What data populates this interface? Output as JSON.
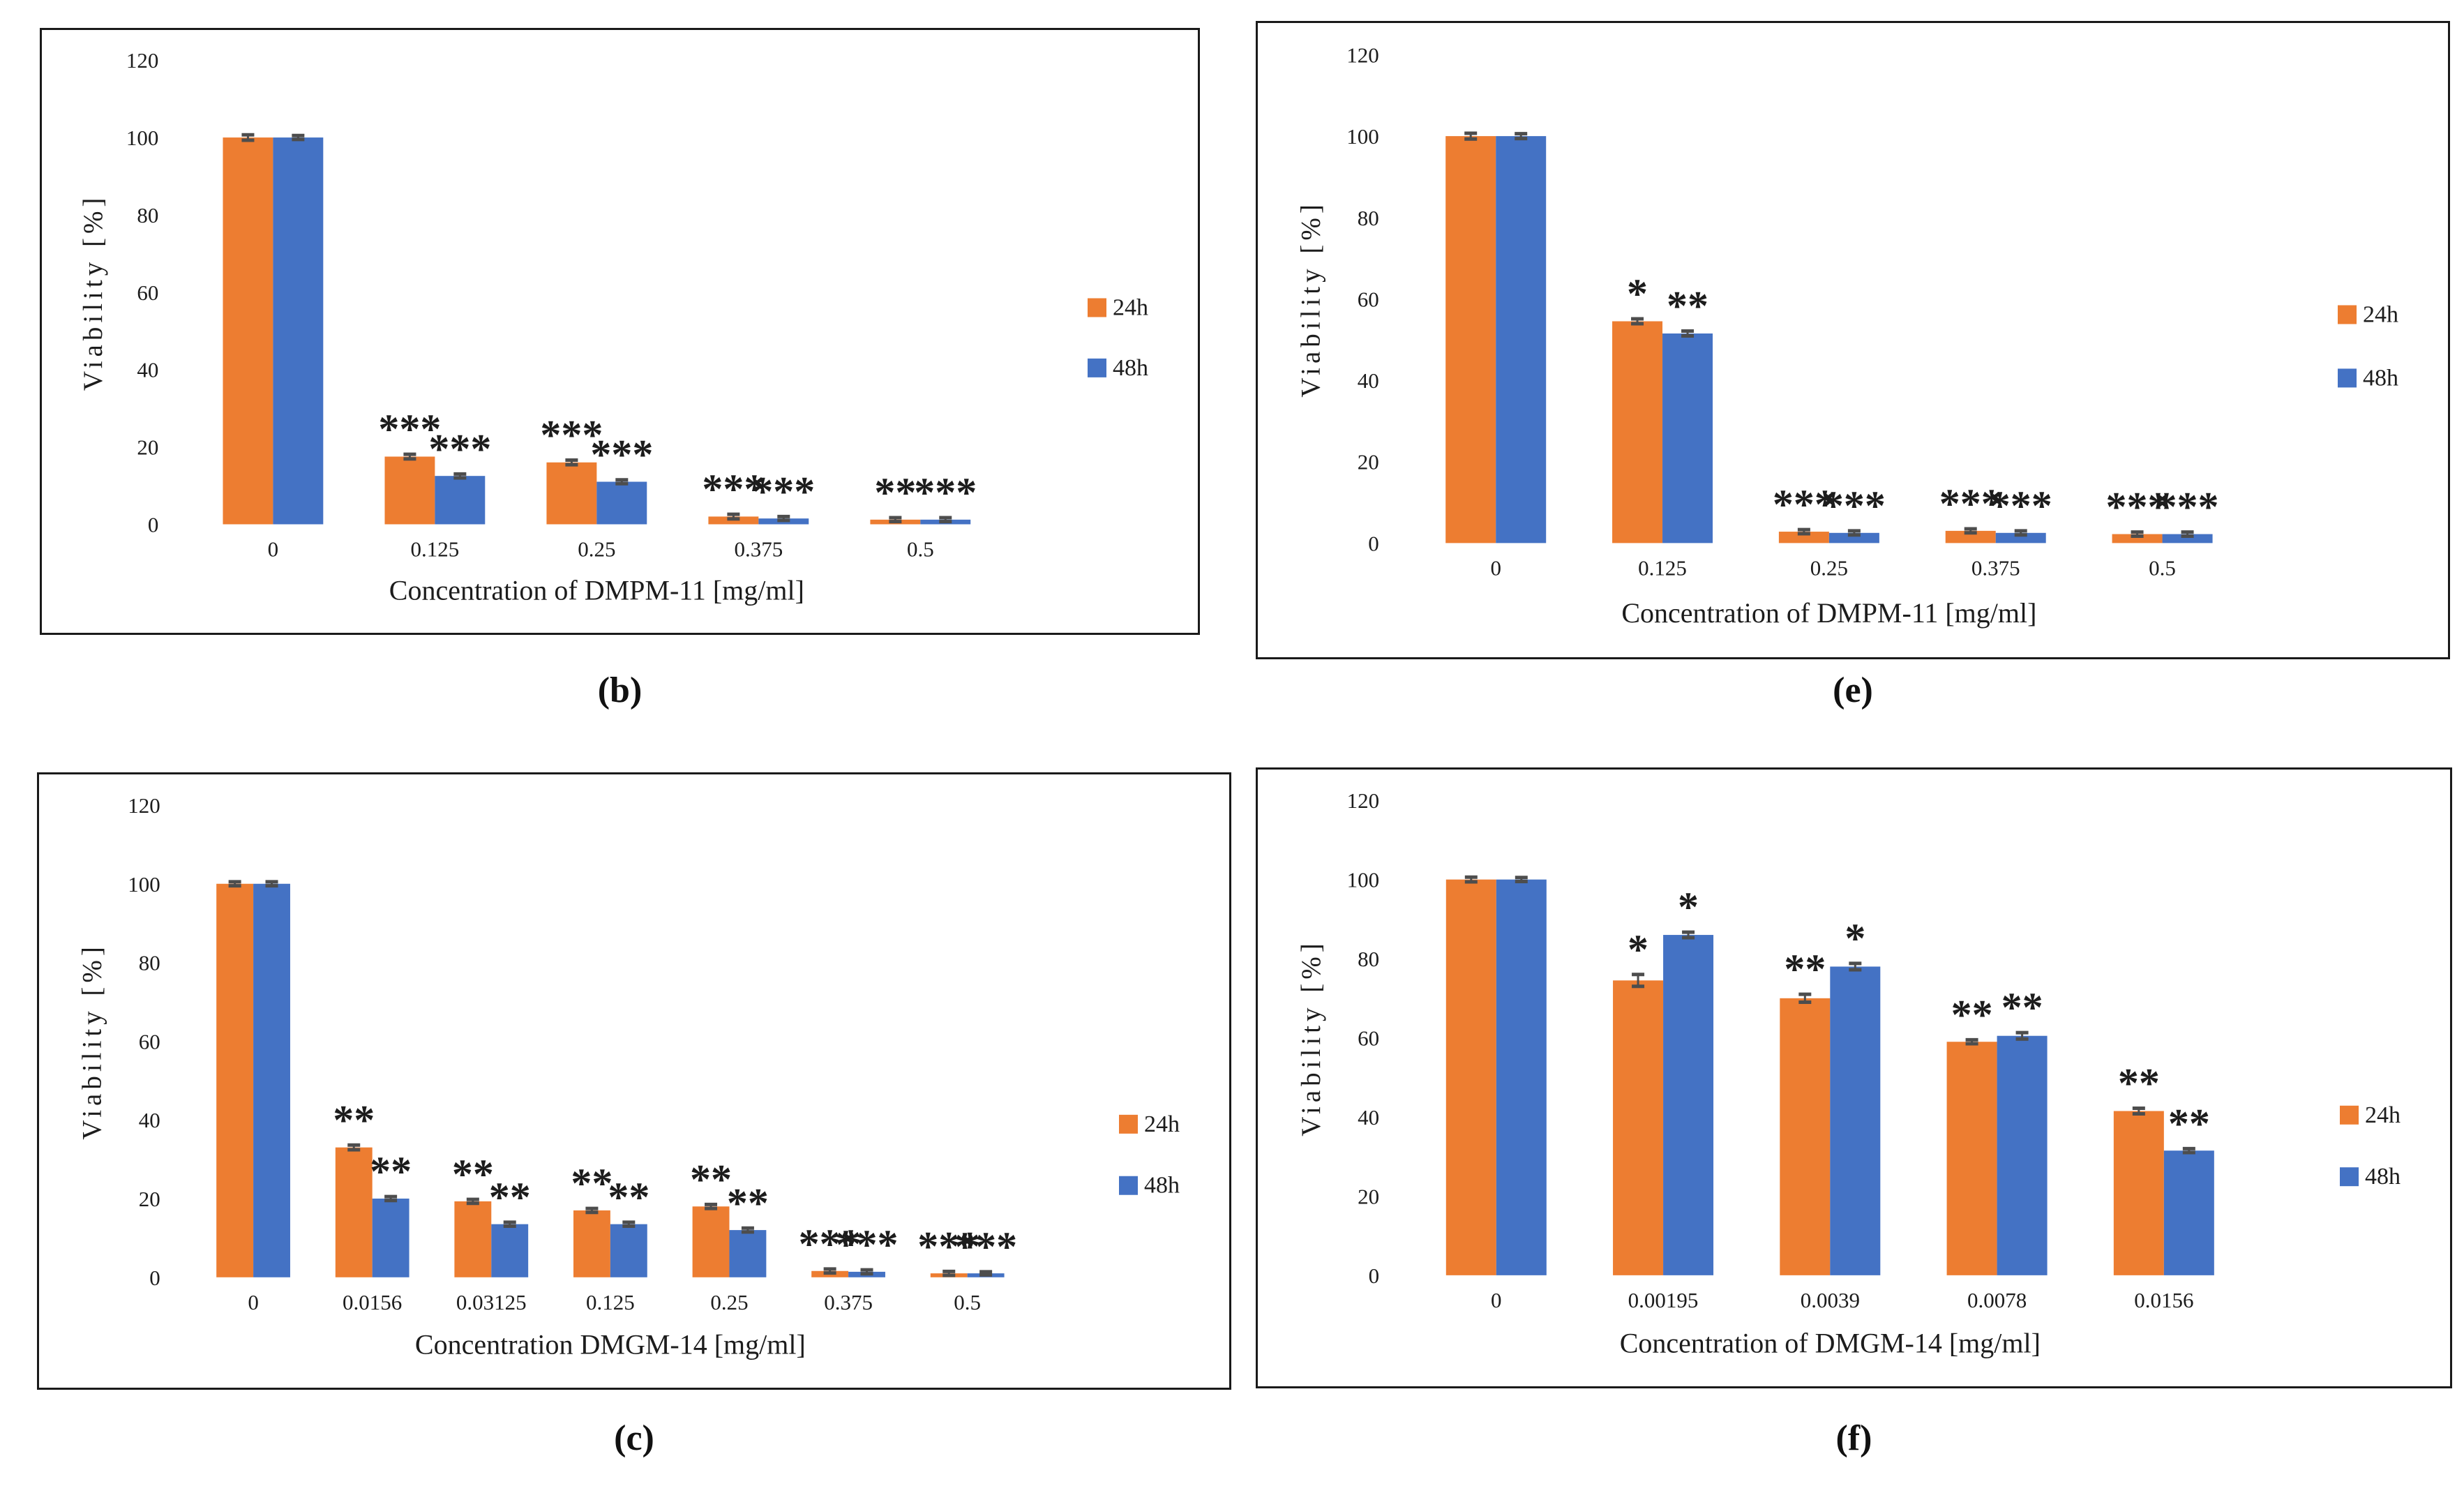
{
  "colors": {
    "series_24h": "#ED7D31",
    "series_48h": "#4472C4",
    "error_bar": "#4d4d4d",
    "panel_border": "#1a1a1a",
    "text": "#1c1c1c"
  },
  "legend": {
    "items": [
      {
        "label": "24h",
        "color_key": "series_24h"
      },
      {
        "label": "48h",
        "color_key": "series_48h"
      }
    ]
  },
  "axes": {
    "ylabel": "Viability [%]",
    "yticks": [
      0,
      20,
      40,
      60,
      80,
      100,
      120
    ],
    "ylim": [
      0,
      120
    ],
    "grid": false,
    "legend_position": "right"
  },
  "chart_data": [
    {
      "id": "b",
      "type": "bar",
      "caption": "(b)",
      "xlabel": "Concentration of DMPM-11 [mg/ml]",
      "ylabel": "Viability [%]",
      "ylim": [
        0,
        120
      ],
      "categories": [
        "0",
        "0.125",
        "0.25",
        "0.375",
        "0.5"
      ],
      "series": [
        {
          "name": "24h",
          "values": [
            100,
            17.5,
            16,
            2,
            1.2
          ],
          "errors": [
            0.7,
            0.6,
            0.6,
            0.6,
            0.5
          ],
          "sig": [
            "",
            "***",
            "***",
            "***",
            "**"
          ]
        },
        {
          "name": "48h",
          "values": [
            100,
            12.5,
            11,
            1.5,
            1.2
          ],
          "errors": [
            0.5,
            0.5,
            0.5,
            0.5,
            0.5
          ],
          "sig": [
            "",
            "***",
            "***",
            "***",
            "***"
          ]
        }
      ]
    },
    {
      "id": "e",
      "type": "bar",
      "caption": "(e)",
      "xlabel": "Concentration of DMPM-11 [mg/ml]",
      "ylabel": "Viability [%]",
      "ylim": [
        0,
        120
      ],
      "categories": [
        "0",
        "0.125",
        "0.25",
        "0.375",
        "0.5"
      ],
      "series": [
        {
          "name": "24h",
          "values": [
            100,
            54.5,
            2.8,
            3,
            2.2
          ],
          "errors": [
            0.7,
            0.6,
            0.5,
            0.5,
            0.5
          ],
          "sig": [
            "",
            "*",
            "***",
            "***",
            "***"
          ]
        },
        {
          "name": "48h",
          "values": [
            100,
            51.5,
            2.5,
            2.5,
            2.2
          ],
          "errors": [
            0.6,
            0.6,
            0.5,
            0.5,
            0.5
          ],
          "sig": [
            "",
            "**",
            "***",
            "***",
            "***"
          ]
        }
      ]
    },
    {
      "id": "c",
      "type": "bar",
      "caption": "(c)",
      "xlabel": "Concentration DMGM-14 [mg/ml]",
      "ylabel": "Viability [%]",
      "ylim": [
        0,
        120
      ],
      "categories": [
        "0",
        "0.0156",
        "0.03125",
        "0.125",
        "0.25",
        "0.375",
        "0.5"
      ],
      "series": [
        {
          "name": "24h",
          "values": [
            100,
            33,
            19.3,
            17,
            18,
            1.6,
            1
          ],
          "errors": [
            0.5,
            0.6,
            0.5,
            0.5,
            0.5,
            0.5,
            0.5
          ],
          "sig": [
            "",
            "**",
            "**",
            "**",
            "**",
            "***",
            "***"
          ]
        },
        {
          "name": "48h",
          "values": [
            100,
            20,
            13.5,
            13.5,
            12,
            1.4,
            1
          ],
          "errors": [
            0.5,
            0.5,
            0.5,
            0.5,
            0.5,
            0.5,
            0.4
          ],
          "sig": [
            "",
            "**",
            "**",
            "**",
            "**",
            "***",
            "***"
          ]
        }
      ]
    },
    {
      "id": "f",
      "type": "bar",
      "caption": "(f)",
      "xlabel": "Concentration of DMGM-14 [mg/ml]",
      "ylabel": "Viability [%]",
      "ylim": [
        0,
        120
      ],
      "categories": [
        "0",
        "0.00195",
        "0.0039",
        "0.0078",
        "0.0156"
      ],
      "series": [
        {
          "name": "24h",
          "values": [
            100,
            74.5,
            70,
            59,
            41.5
          ],
          "errors": [
            0.6,
            1.5,
            1.0,
            0.5,
            0.7
          ],
          "sig": [
            "",
            "*",
            "**",
            "**",
            "**"
          ]
        },
        {
          "name": "48h",
          "values": [
            100,
            86,
            78,
            60.5,
            31.5
          ],
          "errors": [
            0.5,
            0.7,
            0.8,
            0.8,
            0.5
          ],
          "sig": [
            "",
            "*",
            "*",
            "**",
            "**"
          ]
        }
      ]
    }
  ]
}
